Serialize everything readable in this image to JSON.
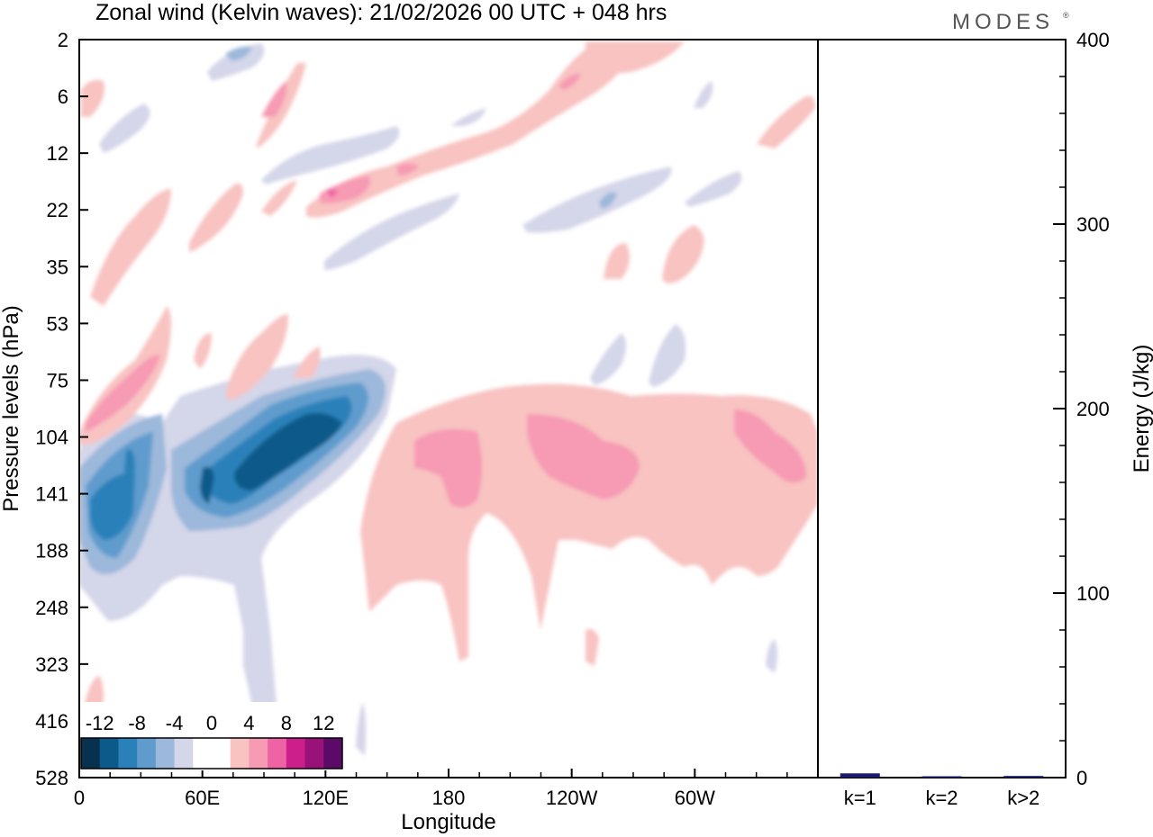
{
  "chart_data": [
    {
      "type": "heatmap",
      "title": "Zonal wind (Kelvin waves):  21/02/2026  00 UTC  + 048 hrs",
      "xlabel": "Longitude",
      "ylabel": "Pressure levels (hPa)",
      "x_ticks": [
        "0",
        "60E",
        "120E",
        "180",
        "120W",
        "60W"
      ],
      "x_tick_values": [
        0,
        60,
        120,
        180,
        240,
        300
      ],
      "xlim": [
        0,
        360
      ],
      "y_ticks": [
        "2",
        "6",
        "12",
        "22",
        "35",
        "53",
        "75",
        "104",
        "141",
        "188",
        "248",
        "323",
        "416",
        "528"
      ],
      "colorbar": {
        "tick_labels": [
          "-12",
          "-8",
          "-4",
          "0",
          "4",
          "8",
          "12"
        ],
        "colors": [
          "#08304f",
          "#0c5a8a",
          "#2a81b9",
          "#5f9ccd",
          "#9cb8da",
          "#d4d6e9",
          "#ffffff",
          "#ffffff",
          "#f8c3c1",
          "#f79ab4",
          "#ee63a4",
          "#cc1f8c",
          "#981279",
          "#5b0a67"
        ]
      },
      "features": [
        {
          "sign": "negative",
          "lon_range": [
            5,
            20
          ],
          "pressure_hPa": 141,
          "value": -10
        },
        {
          "sign": "negative",
          "lon_range": [
            60,
            95
          ],
          "pressure_hPa": 141,
          "value": -8
        },
        {
          "sign": "negative",
          "lon_range": [
            75,
            125
          ],
          "pressure_hPa": 104,
          "value": -13
        },
        {
          "sign": "positive",
          "lon_range": [
            160,
            200
          ],
          "pressure_hPa": 141,
          "value": 5
        },
        {
          "sign": "positive",
          "lon_range": [
            220,
            270
          ],
          "pressure_hPa": 141,
          "value": 5
        },
        {
          "sign": "positive",
          "lon_range": [
            320,
            355
          ],
          "pressure_hPa": 141,
          "value": 5
        },
        {
          "sign": "positive",
          "lon_range": [
            110,
            145
          ],
          "pressure_hPa": 22,
          "value": 6
        },
        {
          "sign": "positive",
          "lon_range": [
            80,
            100
          ],
          "pressure_hPa": 6,
          "value": 5
        }
      ]
    },
    {
      "type": "bar",
      "categories": [
        "k=1",
        "k=2",
        "k>2"
      ],
      "values": [
        2.3,
        0.4,
        0.9
      ],
      "ylabel": "Energy (J/kg)",
      "ylim": [
        0,
        400
      ],
      "y_ticks": [
        "0",
        "100",
        "200",
        "300",
        "400"
      ],
      "bar_color": "#1a1a6e"
    }
  ],
  "branding": {
    "logo_text": "MODES",
    "logo_mark": "®"
  }
}
